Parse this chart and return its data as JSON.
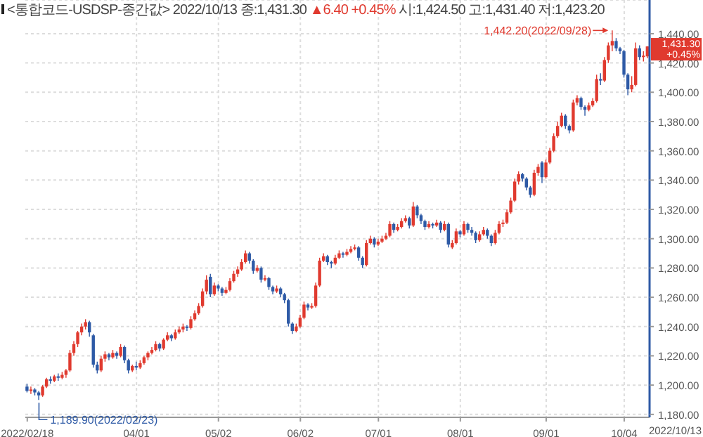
{
  "chart_data": {
    "type": "candlestick",
    "title": "<통합코드-USDSP-종간값> 2022/10/13 종:1,431.30",
    "subtitle": "▲6.40 +0.45%",
    "annotations": [
      "시:1,424.50 고:1,431.40 저:1,423.20",
      "1,442.20(2022/09/28)",
      "1,189.90(2022/02/23)",
      "1,431.30",
      "+0.45%",
      "2022/10/13"
    ],
    "categories": [
      "2022/02/18",
      null,
      null,
      null,
      null,
      null,
      null,
      null,
      null,
      null,
      null,
      null,
      null,
      null,
      null,
      null,
      null,
      null,
      null,
      null,
      null,
      null,
      null,
      null,
      null,
      null,
      null,
      null,
      "04/01",
      null,
      null,
      null,
      null,
      null,
      null,
      null,
      null,
      null,
      null,
      null,
      null,
      null,
      null,
      null,
      null,
      null,
      null,
      null,
      null,
      "05/02",
      null,
      null,
      null,
      null,
      null,
      null,
      null,
      null,
      null,
      null,
      null,
      null,
      null,
      null,
      null,
      null,
      null,
      null,
      null,
      null,
      "06/02",
      null,
      null,
      null,
      null,
      null,
      null,
      null,
      null,
      null,
      null,
      null,
      null,
      null,
      null,
      null,
      null,
      null,
      null,
      null,
      "07/01",
      null,
      null,
      null,
      null,
      null,
      null,
      null,
      null,
      null,
      null,
      null,
      null,
      null,
      null,
      null,
      null,
      null,
      null,
      null,
      null,
      "08/01",
      null,
      null,
      null,
      null,
      null,
      null,
      null,
      null,
      null,
      null,
      null,
      null,
      null,
      null,
      null,
      null,
      null,
      null,
      null,
      null,
      null,
      "09/01",
      null,
      null,
      null,
      null,
      null,
      null,
      null,
      null,
      null,
      null,
      null,
      null,
      null,
      null,
      null,
      null,
      null,
      null,
      null,
      "10/04",
      null,
      null,
      null,
      null,
      null,
      null
    ],
    "ohlc": [
      [
        1199,
        1201,
        1195,
        1196
      ],
      [
        1196,
        1199,
        1194,
        1197
      ],
      [
        1197,
        1198,
        1193,
        1195
      ],
      [
        1195,
        1196,
        1189.9,
        1193
      ],
      [
        1193,
        1200,
        1192,
        1199
      ],
      [
        1199,
        1205,
        1198,
        1204
      ],
      [
        1204,
        1206,
        1201,
        1203
      ],
      [
        1203,
        1207,
        1202,
        1206
      ],
      [
        1206,
        1208,
        1203,
        1205
      ],
      [
        1205,
        1209,
        1204,
        1207
      ],
      [
        1207,
        1211,
        1205,
        1210
      ],
      [
        1210,
        1224,
        1209,
        1222
      ],
      [
        1222,
        1230,
        1220,
        1228
      ],
      [
        1228,
        1237,
        1226,
        1236
      ],
      [
        1236,
        1242,
        1234,
        1240
      ],
      [
        1240,
        1245,
        1238,
        1243
      ],
      [
        1243,
        1244,
        1233,
        1236
      ],
      [
        1234,
        1235,
        1212,
        1214
      ],
      [
        1214,
        1216,
        1208,
        1210
      ],
      [
        1210,
        1220,
        1209,
        1218
      ],
      [
        1218,
        1223,
        1216,
        1221
      ],
      [
        1221,
        1222,
        1217,
        1219
      ],
      [
        1219,
        1224,
        1218,
        1222
      ],
      [
        1222,
        1223,
        1218,
        1220
      ],
      [
        1220,
        1228,
        1219,
        1226
      ],
      [
        1226,
        1227,
        1215,
        1217
      ],
      [
        1217,
        1218,
        1208,
        1210
      ],
      [
        1210,
        1214,
        1209,
        1213
      ],
      [
        1213,
        1216,
        1210,
        1212
      ],
      [
        1212,
        1217,
        1211,
        1215
      ],
      [
        1215,
        1220,
        1214,
        1219
      ],
      [
        1219,
        1223,
        1217,
        1222
      ],
      [
        1222,
        1226,
        1221,
        1224
      ],
      [
        1224,
        1230,
        1223,
        1228
      ],
      [
        1228,
        1229,
        1223,
        1225
      ],
      [
        1225,
        1232,
        1224,
        1231
      ],
      [
        1231,
        1236,
        1230,
        1234
      ],
      [
        1234,
        1235,
        1230,
        1232
      ],
      [
        1232,
        1238,
        1231,
        1236
      ],
      [
        1236,
        1240,
        1235,
        1238
      ],
      [
        1238,
        1242,
        1236,
        1240
      ],
      [
        1240,
        1241,
        1237,
        1239
      ],
      [
        1239,
        1247,
        1238,
        1245
      ],
      [
        1245,
        1251,
        1244,
        1249
      ],
      [
        1249,
        1256,
        1248,
        1254
      ],
      [
        1254,
        1266,
        1253,
        1264
      ],
      [
        1264,
        1275,
        1262,
        1272
      ],
      [
        1274,
        1276,
        1260,
        1262
      ],
      [
        1262,
        1270,
        1261,
        1268
      ],
      [
        1268,
        1269,
        1264,
        1266
      ],
      [
        1266,
        1267,
        1261,
        1263
      ],
      [
        1263,
        1267,
        1262,
        1265
      ],
      [
        1265,
        1273,
        1264,
        1271
      ],
      [
        1271,
        1278,
        1270,
        1276
      ],
      [
        1276,
        1281,
        1274,
        1279
      ],
      [
        1279,
        1286,
        1278,
        1284
      ],
      [
        1284,
        1292,
        1283,
        1290
      ],
      [
        1290,
        1291,
        1283,
        1285
      ],
      [
        1285,
        1286,
        1276,
        1278
      ],
      [
        1278,
        1282,
        1277,
        1280
      ],
      [
        1280,
        1281,
        1270,
        1272
      ],
      [
        1272,
        1275,
        1271,
        1273
      ],
      [
        1273,
        1274,
        1265,
        1267
      ],
      [
        1267,
        1268,
        1262,
        1264
      ],
      [
        1264,
        1268,
        1263,
        1266
      ],
      [
        1266,
        1267,
        1260,
        1262
      ],
      [
        1262,
        1263,
        1256,
        1258
      ],
      [
        1258,
        1259,
        1240,
        1242
      ],
      [
        1242,
        1243,
        1235,
        1237
      ],
      [
        1237,
        1242,
        1236,
        1240
      ],
      [
        1240,
        1248,
        1239,
        1246
      ],
      [
        1246,
        1257,
        1245,
        1255
      ],
      [
        1255,
        1256,
        1251,
        1253
      ],
      [
        1253,
        1256,
        1252,
        1254
      ],
      [
        1254,
        1270,
        1253,
        1268
      ],
      [
        1268,
        1287,
        1267,
        1285
      ],
      [
        1285,
        1290,
        1284,
        1288
      ],
      [
        1288,
        1289,
        1282,
        1284
      ],
      [
        1284,
        1285,
        1280,
        1283
      ],
      [
        1283,
        1289,
        1282,
        1287
      ],
      [
        1287,
        1292,
        1286,
        1290
      ],
      [
        1290,
        1291,
        1287,
        1289
      ],
      [
        1289,
        1293,
        1288,
        1291
      ],
      [
        1291,
        1295,
        1290,
        1293
      ],
      [
        1293,
        1296,
        1292,
        1294
      ],
      [
        1294,
        1295,
        1285,
        1287
      ],
      [
        1287,
        1288,
        1280,
        1282
      ],
      [
        1282,
        1299,
        1281,
        1297
      ],
      [
        1297,
        1302,
        1296,
        1300
      ],
      [
        1300,
        1301,
        1294,
        1296
      ],
      [
        1296,
        1300,
        1295,
        1298
      ],
      [
        1298,
        1302,
        1297,
        1300
      ],
      [
        1300,
        1304,
        1299,
        1302
      ],
      [
        1302,
        1312,
        1301,
        1310
      ],
      [
        1310,
        1311,
        1304,
        1306
      ],
      [
        1306,
        1310,
        1305,
        1308
      ],
      [
        1308,
        1314,
        1307,
        1312
      ],
      [
        1312,
        1316,
        1311,
        1314
      ],
      [
        1314,
        1315,
        1307,
        1309
      ],
      [
        1309,
        1325,
        1308,
        1322
      ],
      [
        1322,
        1323,
        1314,
        1316
      ],
      [
        1316,
        1317,
        1310,
        1312
      ],
      [
        1312,
        1313,
        1306,
        1308
      ],
      [
        1308,
        1312,
        1307,
        1310
      ],
      [
        1310,
        1311,
        1307,
        1309
      ],
      [
        1309,
        1313,
        1308,
        1311
      ],
      [
        1311,
        1312,
        1304,
        1306
      ],
      [
        1306,
        1312,
        1305,
        1310
      ],
      [
        1310,
        1311,
        1294,
        1296
      ],
      [
        1294,
        1299,
        1293,
        1297
      ],
      [
        1297,
        1307,
        1296,
        1305
      ],
      [
        1305,
        1306,
        1301,
        1303
      ],
      [
        1303,
        1312,
        1302,
        1310
      ],
      [
        1310,
        1311,
        1304,
        1306
      ],
      [
        1306,
        1308,
        1302,
        1304
      ],
      [
        1304,
        1305,
        1297,
        1299
      ],
      [
        1299,
        1305,
        1298,
        1303
      ],
      [
        1303,
        1308,
        1302,
        1306
      ],
      [
        1306,
        1307,
        1300,
        1302
      ],
      [
        1302,
        1303,
        1295,
        1297
      ],
      [
        1297,
        1306,
        1296,
        1304
      ],
      [
        1304,
        1312,
        1303,
        1310
      ],
      [
        1310,
        1313,
        1308,
        1311
      ],
      [
        1311,
        1320,
        1310,
        1318
      ],
      [
        1318,
        1328,
        1317,
        1326
      ],
      [
        1326,
        1341,
        1325,
        1339
      ],
      [
        1339,
        1346,
        1337,
        1344
      ],
      [
        1344,
        1345,
        1339,
        1341
      ],
      [
        1341,
        1342,
        1333,
        1335
      ],
      [
        1335,
        1336,
        1328,
        1330
      ],
      [
        1330,
        1347,
        1329,
        1345
      ],
      [
        1345,
        1351,
        1343,
        1349
      ],
      [
        1352,
        1353,
        1338,
        1342
      ],
      [
        1342,
        1354,
        1341,
        1352
      ],
      [
        1352,
        1362,
        1351,
        1360
      ],
      [
        1360,
        1372,
        1359,
        1370
      ],
      [
        1370,
        1380,
        1369,
        1377
      ],
      [
        1377,
        1386,
        1376,
        1384
      ],
      [
        1384,
        1385,
        1375,
        1377
      ],
      [
        1377,
        1378,
        1372,
        1374
      ],
      [
        1374,
        1395,
        1373,
        1393
      ],
      [
        1393,
        1398,
        1391,
        1396
      ],
      [
        1396,
        1397,
        1388,
        1390
      ],
      [
        1390,
        1391,
        1384,
        1388
      ],
      [
        1388,
        1393,
        1387,
        1391
      ],
      [
        1391,
        1396,
        1390,
        1394
      ],
      [
        1394,
        1412,
        1393,
        1409
      ],
      [
        1409,
        1413,
        1405,
        1408
      ],
      [
        1408,
        1424,
        1407,
        1422
      ],
      [
        1422,
        1434,
        1420,
        1432
      ],
      [
        1432,
        1442.2,
        1428,
        1435
      ],
      [
        1435,
        1437,
        1428,
        1430
      ],
      [
        1430,
        1431,
        1426,
        1428
      ],
      [
        1428,
        1429,
        1410,
        1412
      ],
      [
        1412,
        1413,
        1398,
        1402
      ],
      [
        1402,
        1411,
        1400,
        1405
      ],
      [
        1405,
        1434,
        1404,
        1430
      ],
      [
        1430,
        1432,
        1422,
        1424
      ],
      [
        1424,
        1428,
        1421,
        1425
      ],
      [
        1424.5,
        1431.4,
        1423.2,
        1431.3
      ]
    ],
    "colors": [
      "#2e5aa6",
      "#e03a2f",
      "#2e5aa6",
      "#2e5aa6",
      "#e03a2f",
      "#e03a2f",
      "#2e5aa6",
      "#e03a2f",
      "#2e5aa6",
      "#e03a2f",
      "#e03a2f",
      "#e03a2f",
      "#e03a2f",
      "#e03a2f",
      "#e03a2f",
      "#e03a2f",
      "#2e5aa6",
      "#2e5aa6",
      "#2e5aa6",
      "#e03a2f",
      "#e03a2f",
      "#2e5aa6",
      "#e03a2f",
      "#2e5aa6",
      "#e03a2f",
      "#2e5aa6",
      "#2e5aa6",
      "#e03a2f",
      "#2e5aa6",
      "#e03a2f",
      "#e03a2f",
      "#e03a2f",
      "#e03a2f",
      "#e03a2f",
      "#2e5aa6",
      "#e03a2f",
      "#e03a2f",
      "#2e5aa6",
      "#e03a2f",
      "#e03a2f",
      "#e03a2f",
      "#2e5aa6",
      "#e03a2f",
      "#e03a2f",
      "#e03a2f",
      "#e03a2f",
      "#e03a2f",
      "#2e5aa6",
      "#e03a2f",
      "#2e5aa6",
      "#2e5aa6",
      "#e03a2f",
      "#e03a2f",
      "#e03a2f",
      "#e03a2f",
      "#e03a2f",
      "#e03a2f",
      "#2e5aa6",
      "#2e5aa6",
      "#e03a2f",
      "#2e5aa6",
      "#e03a2f",
      "#2e5aa6",
      "#2e5aa6",
      "#e03a2f",
      "#2e5aa6",
      "#2e5aa6",
      "#2e5aa6",
      "#2e5aa6",
      "#e03a2f",
      "#e03a2f",
      "#e03a2f",
      "#2e5aa6",
      "#e03a2f",
      "#e03a2f",
      "#e03a2f",
      "#e03a2f",
      "#2e5aa6",
      "#2e5aa6",
      "#e03a2f",
      "#e03a2f",
      "#2e5aa6",
      "#e03a2f",
      "#e03a2f",
      "#e03a2f",
      "#2e5aa6",
      "#2e5aa6",
      "#e03a2f",
      "#e03a2f",
      "#2e5aa6",
      "#e03a2f",
      "#e03a2f",
      "#e03a2f",
      "#e03a2f",
      "#2e5aa6",
      "#e03a2f",
      "#e03a2f",
      "#e03a2f",
      "#2e5aa6",
      "#e03a2f",
      "#2e5aa6",
      "#2e5aa6",
      "#2e5aa6",
      "#e03a2f",
      "#2e5aa6",
      "#e03a2f",
      "#2e5aa6",
      "#e03a2f",
      "#2e5aa6",
      "#e03a2f",
      "#e03a2f",
      "#2e5aa6",
      "#e03a2f",
      "#2e5aa6",
      "#2e5aa6",
      "#2e5aa6",
      "#e03a2f",
      "#e03a2f",
      "#2e5aa6",
      "#2e5aa6",
      "#e03a2f",
      "#e03a2f",
      "#e03a2f",
      "#e03a2f",
      "#e03a2f",
      "#e03a2f",
      "#e03a2f",
      "#2e5aa6",
      "#2e5aa6",
      "#2e5aa6",
      "#e03a2f",
      "#e03a2f",
      "#2e5aa6",
      "#e03a2f",
      "#e03a2f",
      "#e03a2f",
      "#e03a2f",
      "#e03a2f",
      "#2e5aa6",
      "#2e5aa6",
      "#e03a2f",
      "#e03a2f",
      "#2e5aa6",
      "#2e5aa6",
      "#e03a2f",
      "#e03a2f",
      "#e03a2f",
      "#2e5aa6",
      "#e03a2f",
      "#e03a2f",
      "#e03a2f",
      "#2e5aa6",
      "#2e5aa6",
      "#2e5aa6",
      "#2e5aa6",
      "#e03a2f",
      "#e03a2f",
      "#2e5aa6",
      "#e03a2f",
      "#e03a2f"
    ],
    "ylim": [
      1178,
      1463
    ],
    "yticks": [
      {
        "value": 1180,
        "label": "1,180.00"
      },
      {
        "value": 1200,
        "label": "1,200.00"
      },
      {
        "value": 1220,
        "label": "1,220.00"
      },
      {
        "value": 1240,
        "label": "1,240.00"
      },
      {
        "value": 1260,
        "label": "1,260.00"
      },
      {
        "value": 1280,
        "label": "1,280.00"
      },
      {
        "value": 1300,
        "label": "1,300.00"
      },
      {
        "value": 1320,
        "label": "1,320.00"
      },
      {
        "value": 1340,
        "label": "1,340.00"
      },
      {
        "value": 1360,
        "label": "1,360.00"
      },
      {
        "value": 1380,
        "label": "1,380.00"
      },
      {
        "value": 1400,
        "label": "1,400.00"
      },
      {
        "value": 1420,
        "label": "1,420.00"
      },
      {
        "value": 1440,
        "label": "1,440.00"
      }
    ],
    "grid": true
  }
}
